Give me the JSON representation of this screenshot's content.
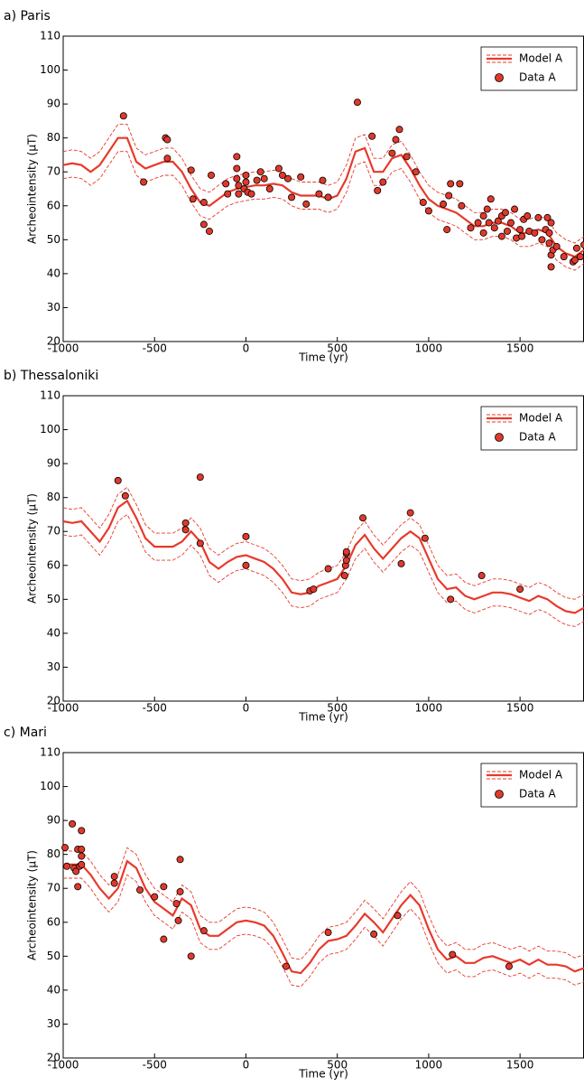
{
  "chart_data": [
    {
      "type": "line",
      "title": "a) Paris",
      "xlabel": "Time (yr)",
      "ylabel": "Archeointensity (μT)",
      "xlim": [
        -1000,
        1850
      ],
      "ylim": [
        20,
        110
      ],
      "xticks": [
        -1000,
        -500,
        0,
        500,
        1000,
        1500
      ],
      "yticks": [
        20,
        30,
        40,
        50,
        60,
        70,
        80,
        90,
        100,
        110
      ],
      "legend": "upper right",
      "series": [
        {
          "name": "Model A",
          "type": "line",
          "color": "#e8392b",
          "x": [
            -1000,
            -950,
            -900,
            -850,
            -800,
            -750,
            -700,
            -650,
            -600,
            -550,
            -500,
            -450,
            -400,
            -350,
            -300,
            -250,
            -200,
            -150,
            -100,
            -50,
            0,
            50,
            100,
            150,
            200,
            250,
            300,
            350,
            400,
            450,
            500,
            550,
            600,
            650,
            700,
            750,
            800,
            850,
            900,
            950,
            1000,
            1050,
            1100,
            1150,
            1200,
            1250,
            1300,
            1350,
            1400,
            1450,
            1500,
            1550,
            1600,
            1650,
            1700,
            1750,
            1800,
            1850
          ],
          "values": [
            72,
            72.5,
            72,
            70,
            72,
            76,
            80,
            80,
            73,
            71,
            72,
            73,
            73,
            70,
            65,
            61,
            60,
            62,
            64,
            65,
            65.5,
            66,
            66,
            66.5,
            66,
            64,
            63,
            63,
            63,
            62,
            63,
            68,
            76,
            77,
            70,
            70,
            74,
            75,
            71,
            66,
            62,
            60,
            59,
            58,
            56,
            54,
            54,
            55,
            55,
            54,
            52,
            52,
            53,
            52,
            48,
            46,
            45,
            47
          ],
          "upper": [
            76,
            76.5,
            76,
            74,
            76,
            80,
            84,
            84,
            77,
            75,
            76,
            77,
            77,
            74,
            69,
            65,
            64,
            66,
            68,
            69,
            69.5,
            70,
            70,
            70.5,
            70,
            68,
            67,
            67,
            67,
            66,
            67,
            72,
            80,
            81,
            74,
            74,
            78,
            79,
            75,
            70,
            66,
            64,
            63,
            62,
            60,
            58,
            58,
            59,
            59,
            58,
            56,
            56,
            57,
            56,
            52,
            50,
            49,
            51
          ],
          "lower": [
            68,
            68.5,
            68,
            66,
            68,
            72,
            76,
            76,
            69,
            67,
            68,
            69,
            69,
            66,
            61,
            57,
            56,
            58,
            60,
            61,
            61.5,
            62,
            62,
            62.5,
            62,
            60,
            59,
            59,
            59,
            58,
            59,
            64,
            72,
            73,
            66,
            66,
            70,
            71,
            67,
            62,
            58,
            56,
            55,
            54,
            52,
            50,
            50,
            51,
            51,
            50,
            48,
            48,
            49,
            48,
            44,
            42,
            41,
            43
          ]
        },
        {
          "name": "Data A",
          "type": "scatter",
          "color": "#e0392b",
          "x": [
            -670,
            -560,
            -440,
            -430,
            -430,
            -300,
            -290,
            -230,
            -230,
            -200,
            -190,
            -110,
            -100,
            -50,
            -50,
            -50,
            -40,
            -40,
            -10,
            0,
            0,
            10,
            30,
            60,
            80,
            100,
            130,
            180,
            200,
            230,
            250,
            300,
            330,
            400,
            420,
            450,
            610,
            690,
            720,
            750,
            800,
            820,
            840,
            880,
            930,
            970,
            1000,
            1080,
            1100,
            1110,
            1120,
            1170,
            1180,
            1230,
            1270,
            1300,
            1300,
            1320,
            1330,
            1340,
            1360,
            1380,
            1400,
            1400,
            1420,
            1430,
            1450,
            1470,
            1480,
            1500,
            1510,
            1520,
            1540,
            1550,
            1580,
            1600,
            1620,
            1640,
            1650,
            1660,
            1660,
            1670,
            1670,
            1670,
            1680,
            1700,
            1740,
            1790,
            1800,
            1810,
            1830,
            1850
          ],
          "values": [
            86.5,
            67,
            80,
            79.5,
            74,
            70.5,
            62,
            61,
            54.5,
            52.5,
            69,
            66.5,
            63.5,
            74.5,
            71,
            68,
            63.5,
            66,
            65,
            69,
            67,
            64,
            63.5,
            67.5,
            70,
            68,
            65,
            71,
            69,
            68,
            62.5,
            68.5,
            60.5,
            63.5,
            67.5,
            62.5,
            90.5,
            80.5,
            64.5,
            67,
            75.5,
            79.5,
            82.5,
            74.5,
            70,
            61,
            58.5,
            60.5,
            53,
            63,
            66.5,
            66.5,
            60,
            53.5,
            55,
            52,
            57,
            59,
            55,
            62,
            53.5,
            55.5,
            57,
            51,
            58,
            52.5,
            55,
            59,
            50.5,
            53,
            51,
            56,
            57,
            52.5,
            52,
            56.5,
            50,
            53,
            56.5,
            49,
            52,
            55,
            45.5,
            42,
            47,
            48,
            45,
            43.5,
            44,
            47.5,
            45,
            48.5
          ]
        }
      ]
    },
    {
      "type": "line",
      "title": "b) Thessaloniki",
      "xlabel": "Time (yr)",
      "ylabel": "Archeointensity (μT)",
      "xlim": [
        -1000,
        1850
      ],
      "ylim": [
        20,
        110
      ],
      "xticks": [
        -1000,
        -500,
        0,
        500,
        1000,
        1500
      ],
      "yticks": [
        20,
        30,
        40,
        50,
        60,
        70,
        80,
        90,
        100,
        110
      ],
      "legend": "upper right",
      "series": [
        {
          "name": "Model A",
          "type": "line",
          "color": "#e8392b",
          "x": [
            -1000,
            -950,
            -900,
            -850,
            -800,
            -750,
            -700,
            -650,
            -600,
            -550,
            -500,
            -450,
            -400,
            -350,
            -300,
            -250,
            -200,
            -150,
            -100,
            -50,
            0,
            50,
            100,
            150,
            200,
            250,
            300,
            350,
            400,
            450,
            500,
            550,
            600,
            650,
            700,
            750,
            800,
            850,
            900,
            950,
            1000,
            1050,
            1100,
            1150,
            1200,
            1250,
            1300,
            1350,
            1400,
            1450,
            1500,
            1550,
            1600,
            1650,
            1700,
            1750,
            1800,
            1850
          ],
          "values": [
            73,
            72.5,
            73,
            70,
            67,
            71,
            77,
            79,
            74,
            68,
            65.5,
            65.5,
            65.5,
            67,
            70,
            67,
            61,
            59,
            61,
            62.5,
            63,
            62,
            61,
            59,
            56,
            52,
            51.5,
            52,
            54,
            55,
            56,
            60,
            66,
            69,
            65,
            62,
            65,
            68,
            70,
            68,
            62,
            56,
            53,
            53.5,
            51,
            50,
            51,
            52,
            52,
            51.5,
            50.5,
            49.5,
            51,
            50,
            48,
            46.5,
            46,
            47.5
          ],
          "upper": [
            77,
            76.5,
            77,
            74,
            71,
            75,
            81,
            83,
            78,
            72,
            69.5,
            69.5,
            69.5,
            71,
            74,
            71,
            65,
            63,
            65,
            66.5,
            67,
            66,
            65,
            63,
            60,
            56,
            55.5,
            56,
            58,
            59,
            60,
            64,
            70,
            73,
            69,
            66,
            69,
            72,
            74,
            72,
            66,
            60,
            57,
            57.5,
            55,
            54,
            55,
            56,
            56,
            55.5,
            54.5,
            53.5,
            55,
            54,
            52,
            50.5,
            50,
            51.5
          ],
          "lower": [
            69,
            68.5,
            69,
            66,
            63,
            67,
            73,
            75,
            70,
            64,
            61.5,
            61.5,
            61.5,
            63,
            66,
            63,
            57,
            55,
            57,
            58.5,
            59,
            58,
            57,
            55,
            52,
            48,
            47.5,
            48,
            50,
            51,
            52,
            56,
            62,
            65,
            61,
            58,
            61,
            64,
            66,
            64,
            58,
            52,
            49,
            49.5,
            47,
            46,
            47,
            48,
            48,
            47.5,
            46.5,
            45.5,
            47,
            46,
            44,
            42.5,
            42,
            43.5
          ]
        },
        {
          "name": "Data A",
          "type": "scatter",
          "color": "#e0392b",
          "x": [
            -700,
            -660,
            -330,
            -330,
            -250,
            -250,
            0,
            0,
            350,
            370,
            450,
            540,
            545,
            550,
            550,
            550,
            640,
            850,
            900,
            980,
            1120,
            1290,
            1500
          ],
          "values": [
            85,
            80.5,
            72.5,
            70.5,
            66.5,
            86,
            68.5,
            60,
            52.5,
            53,
            59,
            57,
            60,
            61.5,
            63.5,
            64,
            74,
            60.5,
            75.5,
            68,
            50,
            57,
            53
          ]
        }
      ]
    },
    {
      "type": "line",
      "title": "c) Mari",
      "xlabel": "Time (yr)",
      "ylabel": "Archeointensity (μT)",
      "xlim": [
        -1000,
        1850
      ],
      "ylim": [
        20,
        110
      ],
      "xticks": [
        -1000,
        -500,
        0,
        500,
        1000,
        1500
      ],
      "yticks": [
        20,
        30,
        40,
        50,
        60,
        70,
        80,
        90,
        100,
        110
      ],
      "legend": "upper right",
      "series": [
        {
          "name": "Model A",
          "type": "line",
          "color": "#e8392b",
          "x": [
            -1000,
            -950,
            -900,
            -850,
            -800,
            -750,
            -700,
            -650,
            -600,
            -550,
            -500,
            -450,
            -400,
            -350,
            -300,
            -250,
            -200,
            -150,
            -100,
            -50,
            0,
            50,
            100,
            150,
            200,
            250,
            300,
            350,
            400,
            450,
            500,
            550,
            600,
            650,
            700,
            750,
            800,
            850,
            900,
            950,
            1000,
            1050,
            1100,
            1150,
            1200,
            1250,
            1300,
            1350,
            1400,
            1450,
            1500,
            1550,
            1600,
            1650,
            1700,
            1750,
            1800,
            1850
          ],
          "values": [
            77,
            77,
            77,
            74,
            70,
            67,
            70,
            78,
            76,
            70,
            66,
            64,
            62,
            67,
            65,
            58,
            56,
            56,
            58,
            60,
            60.5,
            60,
            59,
            56,
            51,
            45.5,
            45,
            48,
            52,
            54.5,
            55,
            56,
            59,
            62.5,
            60,
            57,
            61,
            65,
            68,
            65,
            58,
            52,
            49,
            50,
            48,
            48,
            49.5,
            50,
            49,
            48,
            49,
            47.5,
            49,
            47.5,
            47.5,
            47,
            45.5,
            46.5
          ],
          "upper": [
            81,
            81,
            81,
            78,
            74,
            71,
            74,
            82,
            80,
            74,
            70,
            68,
            66,
            71,
            69,
            62,
            60,
            60,
            62,
            64,
            64.5,
            64,
            63,
            60,
            55,
            49.5,
            49,
            52,
            56,
            58.5,
            59,
            60,
            63,
            66.5,
            64,
            61,
            65,
            69,
            72,
            69,
            62,
            56,
            53,
            54,
            52,
            52,
            53.5,
            54,
            53,
            52,
            53,
            51.5,
            53,
            51.5,
            51.5,
            51,
            49.5,
            50.5
          ],
          "lower": [
            73,
            73,
            73,
            70,
            66,
            63,
            66,
            74,
            72,
            66,
            62,
            60,
            58,
            63,
            61,
            54,
            52,
            52,
            54,
            56,
            56.5,
            56,
            55,
            52,
            47,
            41.5,
            41,
            44,
            48,
            50.5,
            51,
            52,
            55,
            58.5,
            56,
            53,
            57,
            61,
            64,
            61,
            54,
            48,
            45,
            46,
            44,
            44,
            45.5,
            46,
            45,
            44,
            45,
            43.5,
            45,
            43.5,
            43.5,
            43,
            41.5,
            42.5
          ]
        },
        {
          "name": "Data A",
          "type": "scatter",
          "color": "#e0392b",
          "x": [
            -990,
            -980,
            -950,
            -940,
            -930,
            -920,
            -920,
            -910,
            -900,
            -900,
            -900,
            -900,
            -720,
            -720,
            -580,
            -500,
            -450,
            -450,
            -380,
            -370,
            -360,
            -360,
            -300,
            -230,
            220,
            450,
            700,
            830,
            1130,
            1440
          ],
          "values": [
            82,
            76.5,
            89,
            76,
            75,
            81.5,
            70.5,
            76.5,
            81.5,
            79.5,
            87,
            77,
            73.5,
            71.5,
            69.5,
            67.5,
            70.5,
            55,
            65.5,
            60.5,
            69,
            78.5,
            50,
            57.5,
            47,
            57,
            56.5,
            62,
            50.5,
            47
          ]
        }
      ]
    }
  ]
}
